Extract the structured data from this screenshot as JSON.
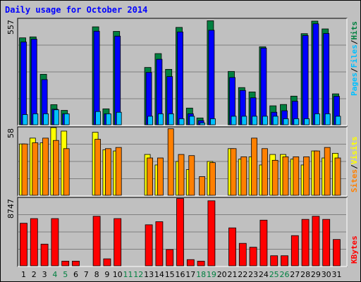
{
  "title": "Daily usage for October 2014",
  "colors": {
    "background": "#c0c0c0",
    "title": "#0000ff",
    "pages": "#0000ff",
    "files": "#00c0ff",
    "hits": "#008040",
    "sites": "#ff8000",
    "visits": "#ffff00",
    "kbytes": "#ff0000",
    "weekend_day": "#008040",
    "weekday": "#000000"
  },
  "chart_data": [
    {
      "type": "bar",
      "panel": "top",
      "ymax_label": "557",
      "categories": [
        "1",
        "2",
        "3",
        "4",
        "5",
        "6",
        "7",
        "8",
        "9",
        "10",
        "11",
        "12",
        "13",
        "14",
        "15",
        "16",
        "17",
        "18",
        "19",
        "20",
        "21",
        "22",
        "23",
        "24",
        "25",
        "26",
        "27",
        "28",
        "29",
        "30",
        "31"
      ],
      "weekend_days": [
        "4",
        "5",
        "11",
        "12",
        "18",
        "19",
        "25",
        "26"
      ],
      "ylim": [
        0,
        557
      ],
      "series": [
        {
          "name": "Hits",
          "color": "#008040",
          "values": [
            458,
            463,
            266,
            106,
            76,
            0,
            0,
            516,
            84,
            492,
            0,
            0,
            302,
            375,
            292,
            513,
            88,
            36,
            548,
            0,
            281,
            196,
            173,
            411,
            100,
            107,
            151,
            480,
            546,
            505,
            163
          ]
        },
        {
          "name": "Pages",
          "color": "#0000ff",
          "values": [
            436,
            451,
            238,
            82,
            58,
            0,
            0,
            493,
            58,
            467,
            0,
            0,
            276,
            345,
            254,
            489,
            58,
            22,
            498,
            0,
            249,
            181,
            142,
            404,
            66,
            74,
            124,
            470,
            532,
            481,
            150
          ]
        },
        {
          "name": "Files",
          "color": "#00c0ff",
          "values": [
            54,
            58,
            58,
            79,
            58,
            0,
            0,
            70,
            58,
            66,
            0,
            0,
            45,
            58,
            58,
            32,
            45,
            10,
            32,
            0,
            45,
            45,
            45,
            45,
            45,
            32,
            32,
            32,
            58,
            58,
            45
          ]
        }
      ]
    },
    {
      "type": "bar",
      "panel": "middle",
      "ymax_label": "58",
      "categories": [
        "1",
        "2",
        "3",
        "4",
        "5",
        "6",
        "7",
        "8",
        "9",
        "10",
        "11",
        "12",
        "13",
        "14",
        "15",
        "16",
        "17",
        "18",
        "19",
        "20",
        "21",
        "22",
        "23",
        "24",
        "25",
        "26",
        "27",
        "28",
        "29",
        "30",
        "31"
      ],
      "ylim": [
        0,
        58
      ],
      "series": [
        {
          "name": "Visits",
          "color": "#ffff00",
          "values": [
            44,
            49,
            45,
            58,
            55,
            0,
            0,
            54,
            39,
            38,
            0,
            0,
            35,
            26,
            0,
            29,
            22,
            0,
            29,
            0,
            40,
            31,
            33,
            26,
            35,
            35,
            31,
            26,
            38,
            32,
            36
          ]
        },
        {
          "name": "Sites",
          "color": "#ff8000",
          "values": [
            44,
            45,
            49,
            47,
            40,
            0,
            0,
            48,
            40,
            41,
            0,
            0,
            32,
            32,
            57,
            35,
            34,
            16,
            28,
            0,
            40,
            33,
            49,
            40,
            30,
            33,
            33,
            33,
            38,
            41,
            32
          ]
        }
      ]
    },
    {
      "type": "bar",
      "panel": "bottom",
      "ymax_label": "8747",
      "categories": [
        "1",
        "2",
        "3",
        "4",
        "5",
        "6",
        "7",
        "8",
        "9",
        "10",
        "11",
        "12",
        "13",
        "14",
        "15",
        "16",
        "17",
        "18",
        "19",
        "20",
        "21",
        "22",
        "23",
        "24",
        "25",
        "26",
        "27",
        "28",
        "29",
        "30",
        "31"
      ],
      "ylim": [
        0,
        8747
      ],
      "series": [
        {
          "name": "KBytes",
          "color": "#ff0000",
          "values": [
            5500,
            6100,
            2800,
            6100,
            600,
            600,
            0,
            6400,
            900,
            6100,
            0,
            0,
            5300,
            5700,
            2100,
            8700,
            800,
            600,
            8400,
            0,
            4900,
            2900,
            2400,
            5900,
            1300,
            1300,
            3900,
            6000,
            6400,
            6000,
            3400
          ]
        }
      ]
    }
  ],
  "side_labels": {
    "top": [
      "Pages",
      "/",
      "Files",
      "/",
      "Hits"
    ],
    "middle": [
      "Sites",
      "/",
      "Visits"
    ],
    "bottom": [
      "KBytes"
    ]
  }
}
